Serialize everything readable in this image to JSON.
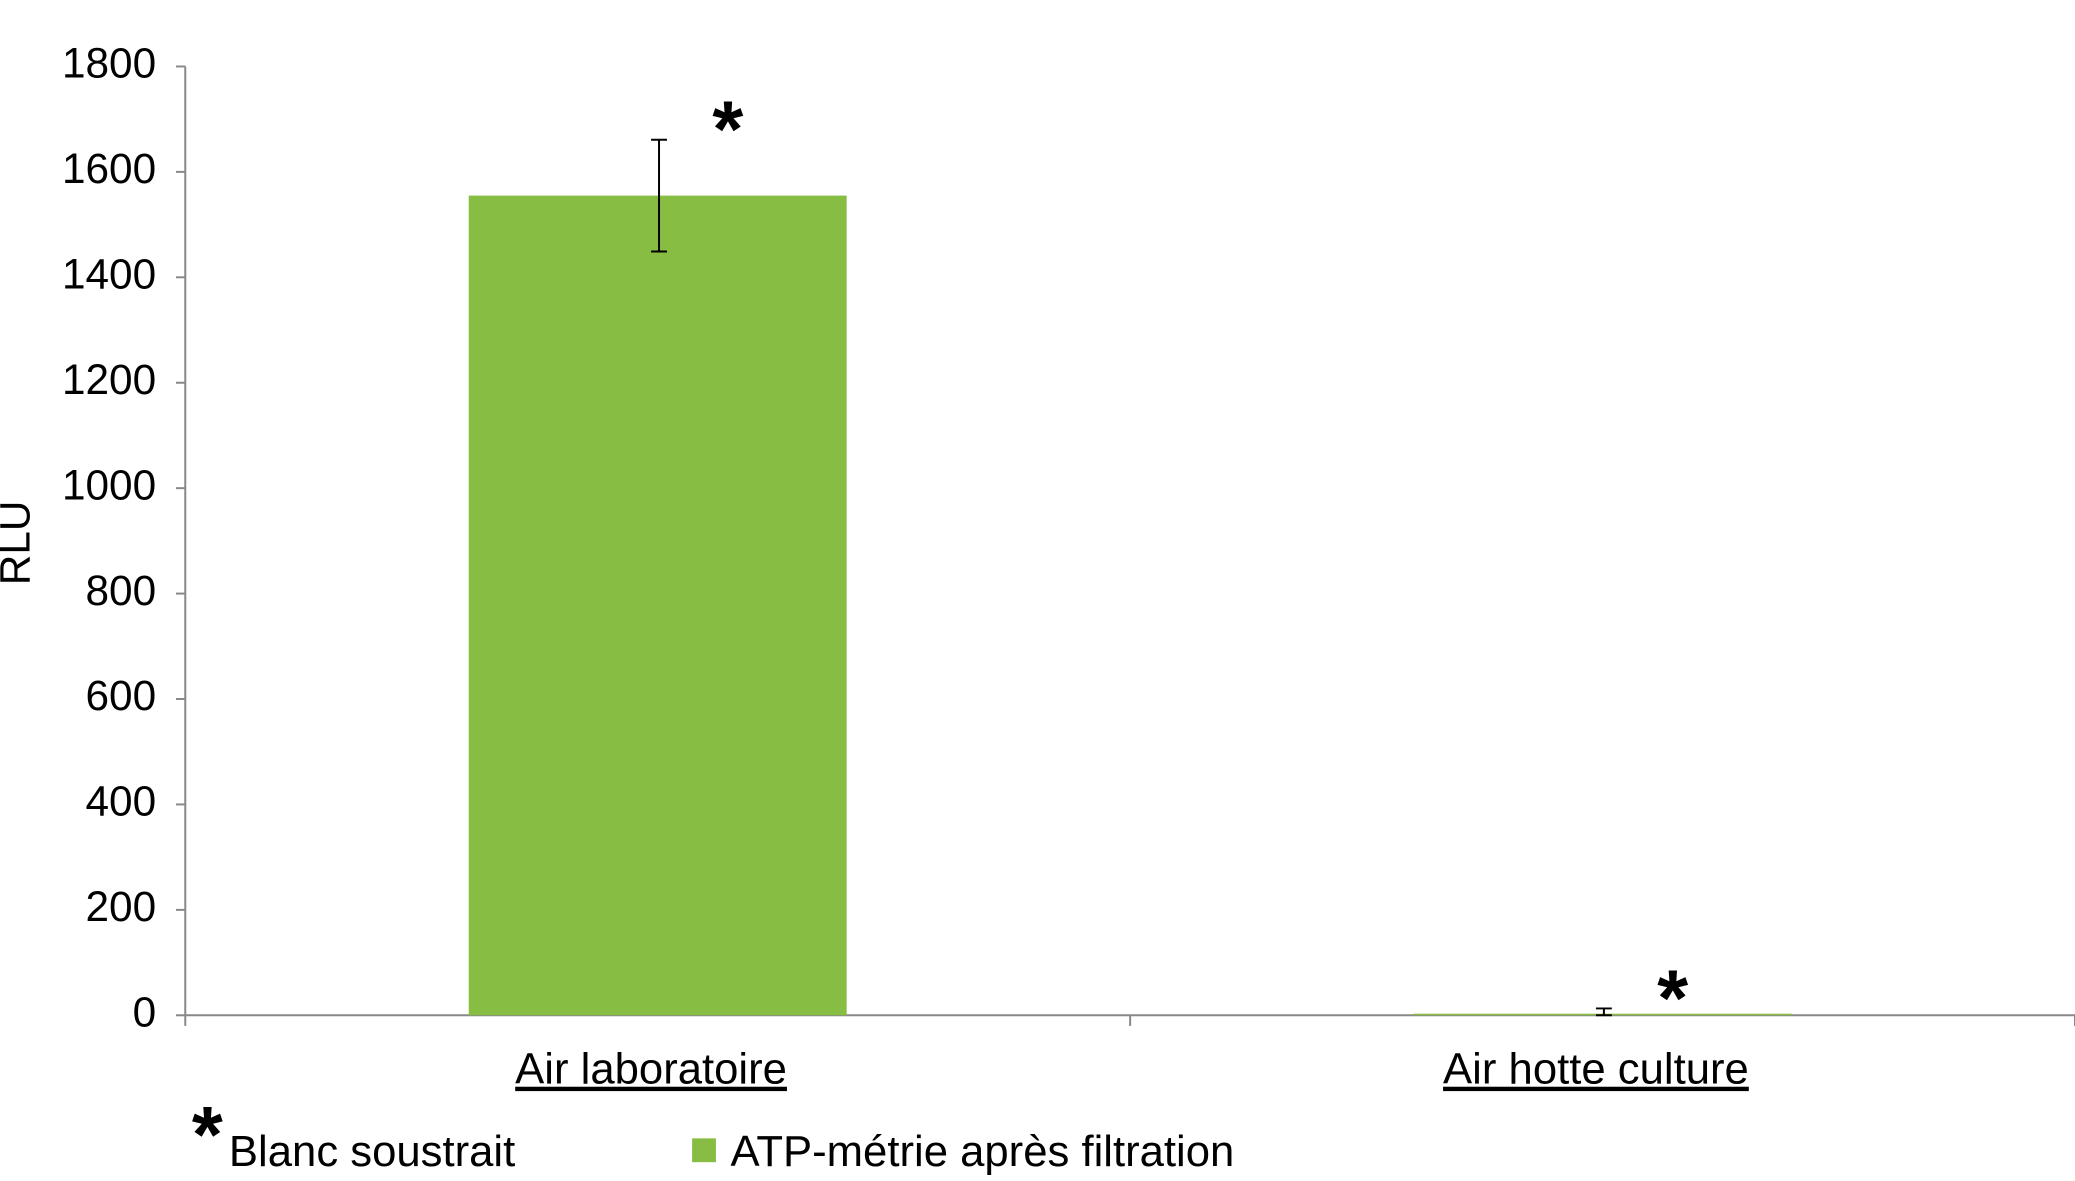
{
  "chart_data": {
    "type": "bar",
    "y_label": "RLU",
    "categories": [
      "Air laboratoire",
      "Air hotte culture"
    ],
    "series": [
      {
        "name": "ATP-métrie après filtration",
        "color": "#86bd42",
        "values": [
          1555,
          3
        ],
        "errors": [
          106,
          10
        ]
      }
    ],
    "annotations": [
      "*",
      "*"
    ],
    "legend_note": {
      "symbol": "*",
      "text": "Blanc soustrait"
    },
    "ylim": [
      0,
      1800
    ],
    "yticks": [
      0,
      200,
      400,
      600,
      800,
      1000,
      1200,
      1400,
      1600,
      1800
    ],
    "grid": false
  }
}
